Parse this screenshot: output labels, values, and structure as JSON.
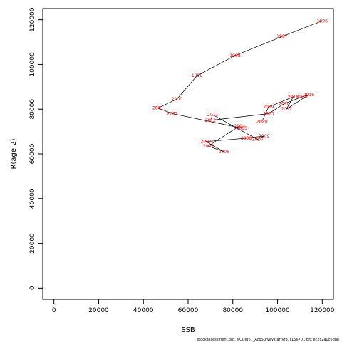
{
  "chart_data": {
    "type": "line",
    "title": "",
    "xlabel": "SSB",
    "ylabel": "R(age 2)",
    "xlim": [
      -5000,
      125000
    ],
    "ylim": [
      -5000,
      125000
    ],
    "xticks": [
      0,
      20000,
      40000,
      60000,
      80000,
      100000,
      120000
    ],
    "yticks": [
      0,
      20000,
      40000,
      60000,
      80000,
      100000,
      120000
    ],
    "grid": false,
    "legend": "none",
    "line_color": "#000000",
    "label_color": "#ff0000",
    "points": [
      {
        "year": "1996",
        "x": 120000,
        "y": 119500
      },
      {
        "year": "1997",
        "x": 102000,
        "y": 112500
      },
      {
        "year": "1998",
        "x": 81000,
        "y": 104000
      },
      {
        "year": "1999",
        "x": 64000,
        "y": 95000
      },
      {
        "year": "2000",
        "x": 55000,
        "y": 84500
      },
      {
        "year": "2001",
        "x": 46500,
        "y": 80500
      },
      {
        "year": "2002",
        "x": 53000,
        "y": 78000
      },
      {
        "year": "2003",
        "x": 84000,
        "y": 71500
      },
      {
        "year": "2004",
        "x": 83000,
        "y": 72500
      },
      {
        "year": "2005",
        "x": 69000,
        "y": 63500
      },
      {
        "year": "2006",
        "x": 76000,
        "y": 61000
      },
      {
        "year": "2007",
        "x": 68000,
        "y": 65500
      },
      {
        "year": "2008",
        "x": 86000,
        "y": 67000
      },
      {
        "year": "2009",
        "x": 94000,
        "y": 68000
      },
      {
        "year": "2010",
        "x": 91000,
        "y": 66500
      },
      {
        "year": "2011",
        "x": 71000,
        "y": 77500
      },
      {
        "year": "2012",
        "x": 70000,
        "y": 75000
      },
      {
        "year": "2013",
        "x": 96000,
        "y": 78000
      },
      {
        "year": "2014",
        "x": 103000,
        "y": 82500
      },
      {
        "year": "2015",
        "x": 111000,
        "y": 85500
      },
      {
        "year": "2016",
        "x": 114000,
        "y": 86500
      },
      {
        "year": "2017",
        "x": 104000,
        "y": 80000
      },
      {
        "year": "2018",
        "x": 107000,
        "y": 85500
      },
      {
        "year": "2019",
        "x": 96000,
        "y": 81000
      },
      {
        "year": "2020",
        "x": 93000,
        "y": 74500
      }
    ],
    "footer": "stockassessment.org, NCOW67_AcoSurveystartyr3, r15670 , git: ec2c2a0c6dde"
  }
}
